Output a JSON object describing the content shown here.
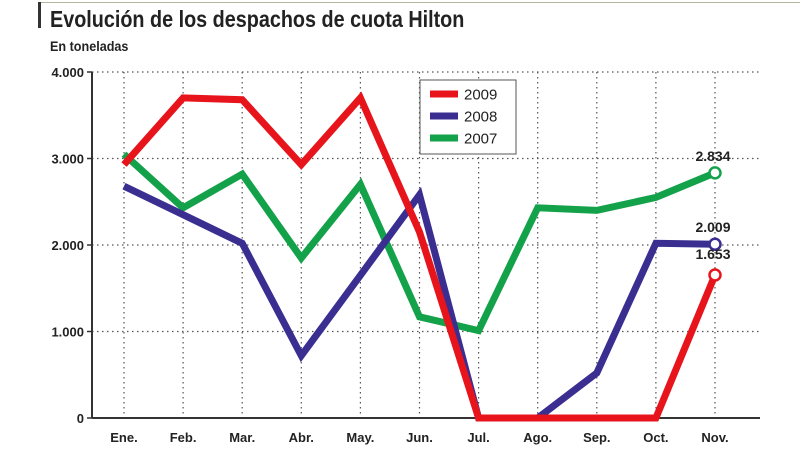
{
  "title": "Evolución de los despachos de cuota Hilton",
  "subtitle": "En toneladas",
  "chart_data": {
    "type": "line",
    "title": "Evolución de los despachos de cuota Hilton",
    "subtitle": "En toneladas",
    "xlabel": "",
    "ylabel": "",
    "categories": [
      "Ene.",
      "Feb.",
      "Mar.",
      "Abr.",
      "May.",
      "Jun.",
      "Jul.",
      "Ago.",
      "Sep.",
      "Oct.",
      "Nov."
    ],
    "y_ticks": [
      "0",
      "1.000",
      "2.000",
      "3.000",
      "4.000"
    ],
    "y_tick_values": [
      0,
      1000,
      2000,
      3000,
      4000
    ],
    "ylim": [
      0,
      4000
    ],
    "grid": "dotted",
    "legend_position": "top-center",
    "series": [
      {
        "name": "2009",
        "color": "#e8141c",
        "values": [
          2930,
          3700,
          3680,
          2930,
          3700,
          2150,
          0,
          0,
          0,
          0,
          1653
        ]
      },
      {
        "name": "2008",
        "color": "#3a2e91",
        "values": [
          2680,
          2350,
          2020,
          720,
          1650,
          2580,
          0,
          0,
          520,
          2020,
          2009
        ]
      },
      {
        "name": "2007",
        "color": "#13a24a",
        "values": [
          3050,
          2430,
          2820,
          1850,
          2700,
          1170,
          1010,
          2430,
          2400,
          2550,
          2834
        ]
      }
    ],
    "annotations": [
      {
        "text": "2.834",
        "series": "2007",
        "index": 10
      },
      {
        "text": "2.009",
        "series": "2008",
        "index": 10
      },
      {
        "text": "1.653",
        "series": "2009",
        "index": 10
      }
    ]
  }
}
